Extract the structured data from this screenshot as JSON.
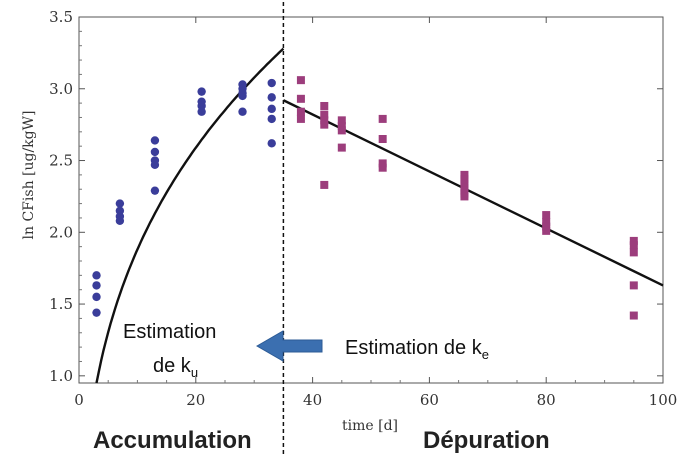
{
  "colors": {
    "accumulation": "#2B4F8E",
    "depuration": "#A0343F",
    "uptake_points": "#3A3D9A",
    "depuration_points": "#9C3D7C",
    "arrow": "#3B6FB0",
    "curve": "#111111"
  },
  "labels": {
    "accumulation": "Accumulation",
    "depuration": "Dépuration",
    "ku_line1": "Estimation",
    "ku_line2": "de k",
    "ku_sub": "u",
    "ke_main": "Estimation de k",
    "ke_sub": "e"
  },
  "chart_data": {
    "type": "scatter",
    "xlabel": "time [d]",
    "ylabel": "ln CFish [ug/kgW]",
    "xlim": [
      0,
      100
    ],
    "ylim": [
      0.95,
      3.5
    ],
    "x_ticks": [
      0,
      20,
      40,
      60,
      80,
      100
    ],
    "y_ticks": [
      1.0,
      1.5,
      2.0,
      2.5,
      3.0,
      3.5
    ],
    "y_tick_labels": [
      "1.0",
      "1.5",
      "2.0",
      "2.5",
      "3.0",
      "3.5"
    ],
    "grid": false,
    "phase_boundary_x": 35,
    "series": [
      {
        "kind": "points",
        "marker": "circle",
        "x": [
          3,
          3,
          3,
          3,
          7,
          7,
          7,
          7,
          13,
          13,
          13,
          13,
          13,
          21,
          21,
          21,
          21,
          28,
          28,
          28,
          28,
          28,
          33,
          33,
          33,
          33,
          33
        ],
        "y": [
          1.7,
          1.63,
          1.55,
          1.44,
          2.2,
          2.15,
          2.11,
          2.08,
          2.64,
          2.56,
          2.5,
          2.47,
          2.29,
          2.98,
          2.91,
          2.88,
          2.84,
          3.03,
          3.0,
          2.97,
          2.95,
          2.84,
          3.04,
          2.94,
          2.86,
          2.79,
          2.62
        ]
      },
      {
        "kind": "points",
        "marker": "square",
        "x": [
          38,
          38,
          38,
          38,
          42,
          42,
          42,
          42,
          42,
          45,
          45,
          45,
          45,
          52,
          52,
          52,
          52,
          66,
          66,
          66,
          66,
          66,
          66,
          66,
          80,
          80,
          80,
          80,
          95,
          95,
          95,
          95,
          95
        ],
        "y": [
          3.06,
          2.93,
          2.84,
          2.79,
          2.88,
          2.82,
          2.78,
          2.75,
          2.33,
          2.78,
          2.74,
          2.71,
          2.59,
          2.79,
          2.65,
          2.48,
          2.45,
          2.4,
          2.37,
          2.34,
          2.31,
          2.29,
          2.27,
          2.25,
          2.12,
          2.07,
          2.04,
          2.01,
          1.94,
          1.91,
          1.86,
          1.63,
          1.42
        ]
      },
      {
        "kind": "uptake_curve",
        "x_range": [
          3,
          35
        ],
        "y_start": 0.95,
        "y_end": 3.28
      },
      {
        "kind": "depuration_line",
        "x": [
          35,
          100
        ],
        "y": [
          2.92,
          1.63
        ]
      }
    ]
  }
}
